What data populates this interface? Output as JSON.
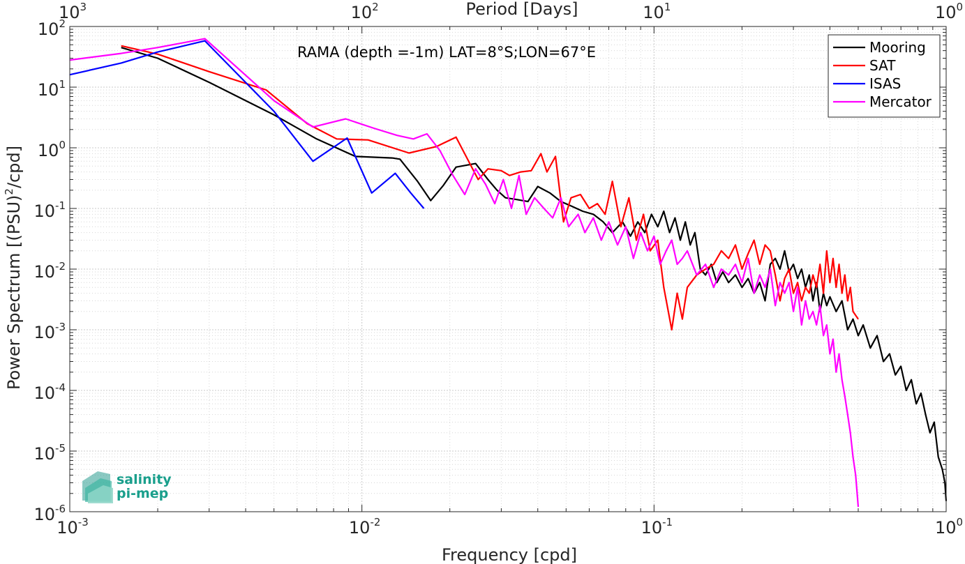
{
  "chart_data": {
    "type": "line",
    "title": "RAMA (depth =-1m) LAT=8°S;LON=67°E",
    "xlabel": "Frequency [cpd]",
    "ylabel": "Power Spectrum [(PSU)",
    "ylabel_sup": "2",
    "ylabel_tail": "/cpd]",
    "top_xlabel": "Period [Days]",
    "xscale": "log",
    "yscale": "log",
    "xlim": [
      0.001,
      1
    ],
    "ylim": [
      1e-06,
      100
    ],
    "grid": true,
    "legend_position": "top-right",
    "x_ticks": [
      {
        "v": 0.001,
        "base": "10",
        "exp": "-3"
      },
      {
        "v": 0.01,
        "base": "10",
        "exp": "-2"
      },
      {
        "v": 0.1,
        "base": "10",
        "exp": "-1"
      },
      {
        "v": 1,
        "base": "10",
        "exp": "0"
      }
    ],
    "top_ticks": [
      {
        "v": 0.001,
        "base": "10",
        "exp": "3"
      },
      {
        "v": 0.01,
        "base": "10",
        "exp": "2"
      },
      {
        "v": 0.1,
        "base": "10",
        "exp": "1"
      },
      {
        "v": 1,
        "base": "10",
        "exp": "0"
      }
    ],
    "y_ticks": [
      {
        "v": 100,
        "base": "10",
        "exp": "2"
      },
      {
        "v": 10,
        "base": "10",
        "exp": "1"
      },
      {
        "v": 1,
        "base": "10",
        "exp": "0"
      },
      {
        "v": 0.1,
        "base": "10",
        "exp": "-1"
      },
      {
        "v": 0.01,
        "base": "10",
        "exp": "-2"
      },
      {
        "v": 0.001,
        "base": "10",
        "exp": "-3"
      },
      {
        "v": 0.0001,
        "base": "10",
        "exp": "-4"
      },
      {
        "v": 1e-05,
        "base": "10",
        "exp": "-5"
      },
      {
        "v": 1e-06,
        "base": "10",
        "exp": "-6"
      }
    ],
    "series": [
      {
        "name": "Mooring",
        "color": "#000000",
        "points": [
          [
            0.0015,
            45
          ],
          [
            0.002,
            30
          ],
          [
            0.003,
            12
          ],
          [
            0.005,
            3.5
          ],
          [
            0.007,
            1.4
          ],
          [
            0.0095,
            0.72
          ],
          [
            0.0127,
            0.68
          ],
          [
            0.0135,
            0.65
          ],
          [
            0.0155,
            0.28
          ],
          [
            0.0172,
            0.135
          ],
          [
            0.019,
            0.24
          ],
          [
            0.021,
            0.48
          ],
          [
            0.0245,
            0.55
          ],
          [
            0.027,
            0.3
          ],
          [
            0.029,
            0.2
          ],
          [
            0.031,
            0.15
          ],
          [
            0.034,
            0.14
          ],
          [
            0.037,
            0.13
          ],
          [
            0.04,
            0.23
          ],
          [
            0.044,
            0.18
          ],
          [
            0.048,
            0.13
          ],
          [
            0.052,
            0.11
          ],
          [
            0.057,
            0.09
          ],
          [
            0.062,
            0.08
          ],
          [
            0.067,
            0.06
          ],
          [
            0.072,
            0.04
          ],
          [
            0.078,
            0.06
          ],
          [
            0.083,
            0.035
          ],
          [
            0.088,
            0.06
          ],
          [
            0.093,
            0.04
          ],
          [
            0.098,
            0.08
          ],
          [
            0.103,
            0.05
          ],
          [
            0.108,
            0.09
          ],
          [
            0.113,
            0.04
          ],
          [
            0.118,
            0.07
          ],
          [
            0.123,
            0.03
          ],
          [
            0.128,
            0.06
          ],
          [
            0.133,
            0.025
          ],
          [
            0.138,
            0.04
          ],
          [
            0.144,
            0.01
          ],
          [
            0.15,
            0.008
          ],
          [
            0.157,
            0.012
          ],
          [
            0.164,
            0.006
          ],
          [
            0.172,
            0.009
          ],
          [
            0.18,
            0.006
          ],
          [
            0.19,
            0.008
          ],
          [
            0.2,
            0.005
          ],
          [
            0.21,
            0.007
          ],
          [
            0.22,
            0.004
          ],
          [
            0.23,
            0.006
          ],
          [
            0.24,
            0.003
          ],
          [
            0.25,
            0.012
          ],
          [
            0.26,
            0.015
          ],
          [
            0.27,
            0.01
          ],
          [
            0.28,
            0.02
          ],
          [
            0.29,
            0.009
          ],
          [
            0.3,
            0.012
          ],
          [
            0.31,
            0.007
          ],
          [
            0.32,
            0.01
          ],
          [
            0.33,
            0.005
          ],
          [
            0.34,
            0.008
          ],
          [
            0.35,
            0.003
          ],
          [
            0.36,
            0.006
          ],
          [
            0.37,
            0.002
          ],
          [
            0.38,
            0.004
          ],
          [
            0.39,
            0.0025
          ],
          [
            0.4,
            0.0035
          ],
          [
            0.42,
            0.002
          ],
          [
            0.44,
            0.003
          ],
          [
            0.46,
            0.001
          ],
          [
            0.48,
            0.0015
          ],
          [
            0.5,
            0.0008
          ],
          [
            0.52,
            0.0012
          ],
          [
            0.55,
            0.0005
          ],
          [
            0.58,
            0.0008
          ],
          [
            0.61,
            0.0003
          ],
          [
            0.64,
            0.0004
          ],
          [
            0.67,
            0.00018
          ],
          [
            0.7,
            0.00025
          ],
          [
            0.73,
            0.0001
          ],
          [
            0.76,
            0.00015
          ],
          [
            0.79,
            6e-05
          ],
          [
            0.82,
            9e-05
          ],
          [
            0.85,
            4e-05
          ],
          [
            0.88,
            2e-05
          ],
          [
            0.91,
            3e-05
          ],
          [
            0.94,
            8e-06
          ],
          [
            0.97,
            5e-06
          ],
          [
            0.99,
            3e-06
          ],
          [
            1.0,
            1.5e-06
          ]
        ]
      },
      {
        "name": "SAT",
        "color": "#ff0000",
        "points": [
          [
            0.0015,
            48
          ],
          [
            0.002,
            35
          ],
          [
            0.003,
            18
          ],
          [
            0.0047,
            9
          ],
          [
            0.0065,
            2.5
          ],
          [
            0.0082,
            1.4
          ],
          [
            0.0105,
            1.35
          ],
          [
            0.0145,
            0.82
          ],
          [
            0.018,
            1.05
          ],
          [
            0.021,
            1.5
          ],
          [
            0.025,
            0.3
          ],
          [
            0.027,
            0.45
          ],
          [
            0.03,
            0.42
          ],
          [
            0.032,
            0.35
          ],
          [
            0.035,
            0.4
          ],
          [
            0.038,
            0.42
          ],
          [
            0.041,
            0.8
          ],
          [
            0.043,
            0.4
          ],
          [
            0.046,
            0.72
          ],
          [
            0.049,
            0.06
          ],
          [
            0.052,
            0.15
          ],
          [
            0.056,
            0.17
          ],
          [
            0.06,
            0.1
          ],
          [
            0.064,
            0.12
          ],
          [
            0.068,
            0.08
          ],
          [
            0.072,
            0.28
          ],
          [
            0.077,
            0.05
          ],
          [
            0.082,
            0.15
          ],
          [
            0.087,
            0.03
          ],
          [
            0.092,
            0.08
          ],
          [
            0.097,
            0.02
          ],
          [
            0.103,
            0.03
          ],
          [
            0.108,
            0.005
          ],
          [
            0.115,
            0.001
          ],
          [
            0.12,
            0.004
          ],
          [
            0.125,
            0.0015
          ],
          [
            0.13,
            0.005
          ],
          [
            0.14,
            0.008
          ],
          [
            0.15,
            0.01
          ],
          [
            0.16,
            0.012
          ],
          [
            0.17,
            0.02
          ],
          [
            0.18,
            0.015
          ],
          [
            0.19,
            0.025
          ],
          [
            0.2,
            0.01
          ],
          [
            0.21,
            0.018
          ],
          [
            0.22,
            0.03
          ],
          [
            0.23,
            0.012
          ],
          [
            0.24,
            0.025
          ],
          [
            0.25,
            0.02
          ],
          [
            0.26,
            0.008
          ],
          [
            0.27,
            0.003
          ],
          [
            0.28,
            0.007
          ],
          [
            0.29,
            0.01
          ],
          [
            0.3,
            0.004
          ],
          [
            0.31,
            0.006
          ],
          [
            0.32,
            0.003
          ],
          [
            0.33,
            0.005
          ],
          [
            0.34,
            0.004
          ],
          [
            0.35,
            0.008
          ],
          [
            0.36,
            0.005
          ],
          [
            0.37,
            0.012
          ],
          [
            0.38,
            0.004
          ],
          [
            0.39,
            0.02
          ],
          [
            0.4,
            0.006
          ],
          [
            0.41,
            0.015
          ],
          [
            0.42,
            0.005
          ],
          [
            0.43,
            0.012
          ],
          [
            0.44,
            0.004
          ],
          [
            0.45,
            0.008
          ],
          [
            0.46,
            0.003
          ],
          [
            0.47,
            0.005
          ],
          [
            0.48,
            0.002
          ],
          [
            0.5,
            0.0015
          ]
        ]
      },
      {
        "name": "ISAS",
        "color": "#0000ff",
        "points": [
          [
            0.001,
            16
          ],
          [
            0.0015,
            25
          ],
          [
            0.002,
            38
          ],
          [
            0.0029,
            58
          ],
          [
            0.005,
            4
          ],
          [
            0.0068,
            0.6
          ],
          [
            0.0089,
            1.45
          ],
          [
            0.0108,
            0.18
          ],
          [
            0.013,
            0.38
          ],
          [
            0.0147,
            0.18
          ],
          [
            0.0163,
            0.1
          ]
        ]
      },
      {
        "name": "Mercator",
        "color": "#ff00ff",
        "points": [
          [
            0.001,
            28
          ],
          [
            0.0015,
            36
          ],
          [
            0.002,
            45
          ],
          [
            0.0029,
            63
          ],
          [
            0.005,
            6
          ],
          [
            0.0068,
            2.2
          ],
          [
            0.0088,
            3.0
          ],
          [
            0.011,
            2.1
          ],
          [
            0.0132,
            1.6
          ],
          [
            0.015,
            1.4
          ],
          [
            0.0167,
            1.7
          ],
          [
            0.0185,
            0.9
          ],
          [
            0.0205,
            0.35
          ],
          [
            0.0225,
            0.17
          ],
          [
            0.0245,
            0.45
          ],
          [
            0.0265,
            0.25
          ],
          [
            0.0285,
            0.12
          ],
          [
            0.0305,
            0.3
          ],
          [
            0.0325,
            0.1
          ],
          [
            0.0345,
            0.35
          ],
          [
            0.0365,
            0.08
          ],
          [
            0.039,
            0.15
          ],
          [
            0.042,
            0.1
          ],
          [
            0.045,
            0.07
          ],
          [
            0.048,
            0.15
          ],
          [
            0.051,
            0.05
          ],
          [
            0.055,
            0.08
          ],
          [
            0.058,
            0.04
          ],
          [
            0.062,
            0.07
          ],
          [
            0.066,
            0.03
          ],
          [
            0.07,
            0.06
          ],
          [
            0.075,
            0.025
          ],
          [
            0.08,
            0.05
          ],
          [
            0.085,
            0.015
          ],
          [
            0.09,
            0.04
          ],
          [
            0.095,
            0.02
          ],
          [
            0.1,
            0.035
          ],
          [
            0.105,
            0.012
          ],
          [
            0.11,
            0.02
          ],
          [
            0.115,
            0.03
          ],
          [
            0.12,
            0.012
          ],
          [
            0.125,
            0.015
          ],
          [
            0.13,
            0.02
          ],
          [
            0.14,
            0.008
          ],
          [
            0.15,
            0.012
          ],
          [
            0.16,
            0.005
          ],
          [
            0.17,
            0.01
          ],
          [
            0.18,
            0.008
          ],
          [
            0.19,
            0.012
          ],
          [
            0.2,
            0.006
          ],
          [
            0.21,
            0.015
          ],
          [
            0.22,
            0.004
          ],
          [
            0.23,
            0.008
          ],
          [
            0.24,
            0.005
          ],
          [
            0.25,
            0.01
          ],
          [
            0.26,
            0.0025
          ],
          [
            0.27,
            0.006
          ],
          [
            0.28,
            0.004
          ],
          [
            0.29,
            0.006
          ],
          [
            0.3,
            0.002
          ],
          [
            0.31,
            0.005
          ],
          [
            0.32,
            0.0012
          ],
          [
            0.33,
            0.003
          ],
          [
            0.34,
            0.0015
          ],
          [
            0.35,
            0.002
          ],
          [
            0.36,
            0.0012
          ],
          [
            0.37,
            0.0025
          ],
          [
            0.38,
            0.0008
          ],
          [
            0.39,
            0.0012
          ],
          [
            0.4,
            0.0004
          ],
          [
            0.41,
            0.0007
          ],
          [
            0.42,
            0.0002
          ],
          [
            0.43,
            0.0004
          ],
          [
            0.44,
            0.00015
          ],
          [
            0.45,
            8e-05
          ],
          [
            0.46,
            4e-05
          ],
          [
            0.47,
            2e-05
          ],
          [
            0.48,
            8e-06
          ],
          [
            0.49,
            4e-06
          ],
          [
            0.5,
            1.2e-06
          ]
        ]
      }
    ]
  },
  "logo": {
    "line1": "salinity",
    "line2": "pi-mep",
    "color": "#1a9f8c"
  }
}
